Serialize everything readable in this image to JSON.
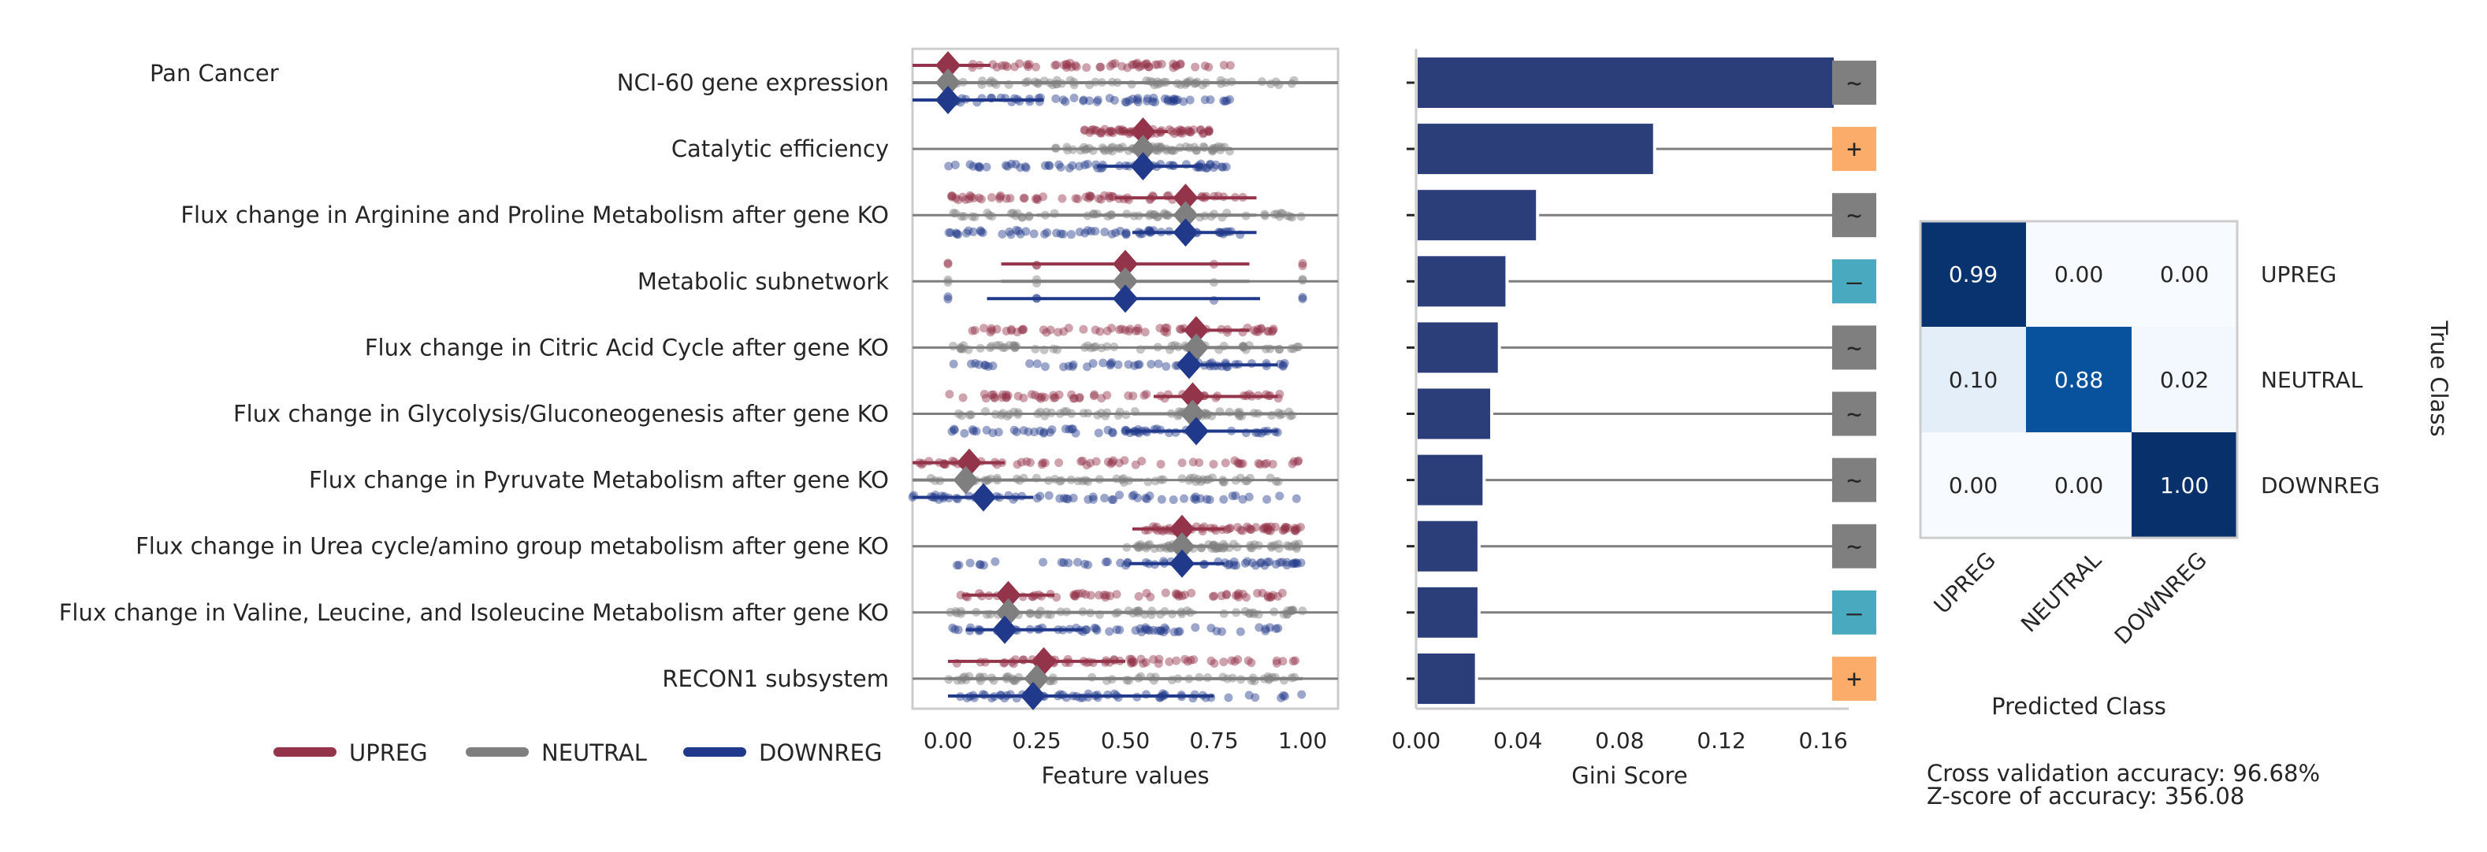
{
  "title": "Pan Cancer",
  "features": [
    "NCI-60 gene expression",
    "Catalytic efficiency",
    "Flux change in Arginine and Proline Metabolism after gene KO",
    "Metabolic subnetwork",
    "Flux change in Citric Acid Cycle after gene KO",
    "Flux change in Glycolysis/Gluconeogenesis after gene KO",
    "Flux change in Pyruvate Metabolism after gene KO",
    "Flux change in Urea cycle/amino group metabolism after gene KO",
    "Flux change in Valine, Leucine, and Isoleucine Metabolism after gene KO",
    "RECON1 subsystem"
  ],
  "legend": [
    {
      "label": "UPREG",
      "color": "#93344a"
    },
    {
      "label": "NEUTRAL",
      "color": "#7f7f7f"
    },
    {
      "label": "DOWNREG",
      "color": "#21398a"
    }
  ],
  "footer": {
    "accuracy": "Cross validation accuracy: 96.68%",
    "zscore": "Z-score of accuracy: 356.08"
  },
  "chart_data": [
    {
      "type": "scatter",
      "title": "",
      "xlabel": "Feature values",
      "ylabel": "",
      "xlim": [
        -0.1,
        1.1
      ],
      "xticks": [
        "0.00",
        "0.25",
        "0.50",
        "0.75",
        "1.00"
      ],
      "grid": false,
      "series": [
        {
          "name": "UPREG",
          "means": [
            0.0,
            0.55,
            0.67,
            0.5,
            0.7,
            0.69,
            0.06,
            0.66,
            0.17,
            0.27
          ],
          "ci_low": [
            -0.1,
            0.49,
            0.47,
            0.15,
            0.66,
            0.58,
            -0.1,
            0.52,
            0.04,
            0.0
          ],
          "ci_high": [
            0.12,
            0.62,
            0.87,
            0.85,
            0.85,
            0.93,
            0.16,
            0.78,
            0.3,
            0.5
          ]
        },
        {
          "name": "NEUTRAL",
          "means": [
            0.0,
            0.55,
            0.67,
            0.5,
            0.7,
            0.69,
            0.05,
            0.66,
            0.17,
            0.25
          ],
          "ci_low": [
            -0.1,
            0.45,
            0.25,
            0.15,
            0.55,
            0.52,
            -0.1,
            0.52,
            0.04,
            0.0
          ],
          "ci_high": [
            1.1,
            0.8,
            0.87,
            0.85,
            0.93,
            0.93,
            0.55,
            0.78,
            0.7,
            1.0
          ]
        },
        {
          "name": "DOWNREG",
          "means": [
            0.0,
            0.55,
            0.67,
            0.5,
            0.68,
            0.7,
            0.1,
            0.66,
            0.16,
            0.24
          ],
          "ci_low": [
            -0.1,
            0.42,
            0.52,
            0.11,
            0.71,
            0.5,
            -0.1,
            0.51,
            0.05,
            0.0
          ],
          "ci_high": [
            0.27,
            0.71,
            0.87,
            0.88,
            0.93,
            0.93,
            0.24,
            0.78,
            0.38,
            0.75
          ]
        }
      ]
    },
    {
      "type": "bar",
      "title": "",
      "xlabel": "Gini Score",
      "ylabel": "",
      "xlim": [
        0,
        0.17
      ],
      "xticks": [
        "0.00",
        "0.04",
        "0.08",
        "0.12",
        "0.16"
      ],
      "orientation": "horizontal",
      "categories": [
        "NCI-60 gene expression",
        "Catalytic efficiency",
        "Flux change in Arginine and Proline Metabolism after gene KO",
        "Metabolic subnetwork",
        "Flux change in Citric Acid Cycle after gene KO",
        "Flux change in Glycolysis/Gluconeogenesis after gene KO",
        "Flux change in Pyruvate Metabolism after gene KO",
        "Flux change in Urea cycle/amino group metabolism after gene KO",
        "Flux change in Valine, Leucine, and Isoleucine Metabolism after gene KO",
        "RECON1 subsystem"
      ],
      "values": [
        0.1635,
        0.0925,
        0.0465,
        0.0345,
        0.0315,
        0.0285,
        0.0255,
        0.0235,
        0.0235,
        0.0225
      ],
      "bar_color": "#2b3e7a",
      "direction": [
        "~",
        "+",
        "~",
        "—",
        "~",
        "~",
        "~",
        "~",
        "—",
        "+"
      ],
      "direction_colors": {
        "~": "#7f7f7f",
        "+": "#fbac6a",
        "—": "#49a9bf"
      }
    },
    {
      "type": "heatmap",
      "title": "",
      "xlabel": "Predicted Class",
      "ylabel": "True Class",
      "rows": [
        "UPREG",
        "NEUTRAL",
        "DOWNREG"
      ],
      "cols": [
        "UPREG",
        "NEUTRAL",
        "DOWNREG"
      ],
      "values": [
        [
          0.99,
          0.0,
          0.0
        ],
        [
          0.1,
          0.88,
          0.02
        ],
        [
          0.0,
          0.0,
          1.0
        ]
      ],
      "labels": [
        [
          "0.99",
          "0.00",
          "0.00"
        ],
        [
          "0.10",
          "0.88",
          "0.02"
        ],
        [
          "0.00",
          "0.00",
          "1.00"
        ]
      ]
    }
  ]
}
